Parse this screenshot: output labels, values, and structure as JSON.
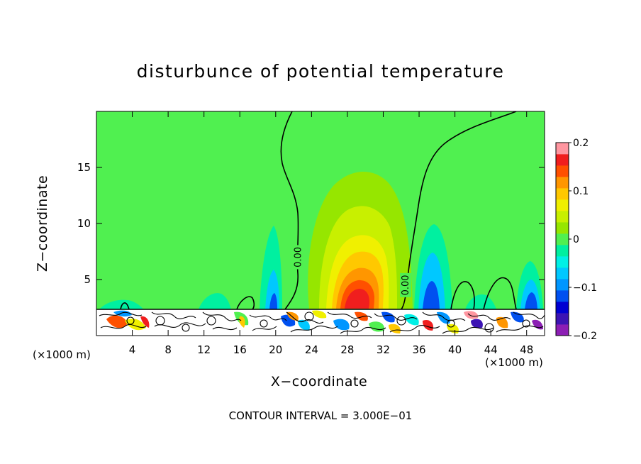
{
  "chart_data": {
    "type": "heatmap",
    "title": "disturbunce of potential temperature",
    "xlabel": "X−coordinate",
    "ylabel": "Z−coordinate",
    "x_unit": "(×1000 m)",
    "y_unit": "(×1000 m)",
    "xlim": [
      0,
      50
    ],
    "ylim": [
      0,
      20
    ],
    "x_ticks": [
      4,
      8,
      12,
      16,
      20,
      24,
      28,
      32,
      36,
      40,
      44,
      48
    ],
    "y_ticks": [
      5,
      10,
      15
    ],
    "colorbar": {
      "range": [
        -0.2,
        0.2
      ],
      "tick_values": [
        0.2,
        0.1,
        0,
        -0.1,
        -0.2
      ],
      "tick_labels": [
        "0.2",
        "0.1",
        "0",
        "−0.1",
        "−0.2"
      ],
      "levels": [
        -0.2,
        -0.175,
        -0.15,
        -0.125,
        -0.1,
        -0.075,
        -0.05,
        -0.025,
        0,
        0.025,
        0.05,
        0.075,
        0.1,
        0.125,
        0.15,
        0.175,
        0.2
      ],
      "colors": [
        "#8c1eb4",
        "#3c14b4",
        "#0000d2",
        "#0050f0",
        "#0096ff",
        "#00c8ff",
        "#00f0e6",
        "#00f0a0",
        "#50f050",
        "#96e600",
        "#c8f000",
        "#f0f000",
        "#ffc800",
        "#ff9600",
        "#ff5000",
        "#f01e1e",
        "#ff96a0"
      ]
    },
    "background_value": 0.0,
    "field_features": [
      {
        "kind": "warm anomaly",
        "x": 29.5,
        "z": 4,
        "peak_value": 0.13
      },
      {
        "kind": "cool anomaly",
        "x": 19.5,
        "z": 3,
        "peak_value": -0.1
      },
      {
        "kind": "cool anomaly",
        "x": 36,
        "z": 4,
        "peak_value": -0.1
      },
      {
        "kind": "cool anomaly",
        "x": 46.5,
        "z": 3.5,
        "peak_value": -0.1
      }
    ],
    "contour_labels": [
      {
        "text": "0.00",
        "x": 22.5,
        "z": 7
      },
      {
        "text": "0.00",
        "x": 34.5,
        "z": 4.5
      }
    ],
    "contour_interval_text": "CONTOUR INTERVAL = 3.000E−01"
  }
}
